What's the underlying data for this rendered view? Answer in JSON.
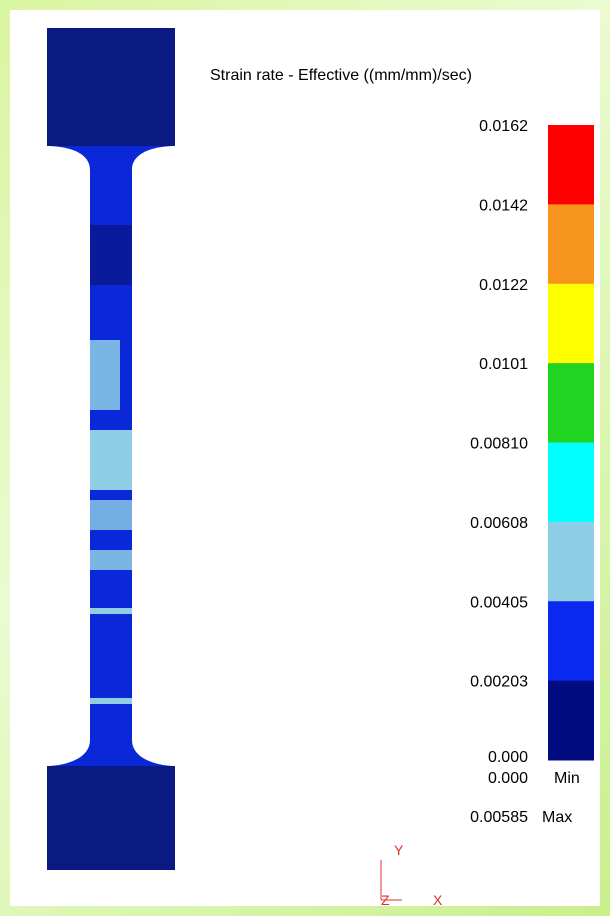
{
  "legend": {
    "title": "Strain rate - Effective ((mm/mm)/sec)",
    "labels": [
      "0.0162",
      "0.0142",
      "0.0122",
      "0.0101",
      "0.00810",
      "0.00608",
      "0.00405",
      "0.00203",
      "0.000"
    ],
    "colors": [
      "#ff0000",
      "#f7941e",
      "#ffff00",
      "#22d422",
      "#00ffff",
      "#8ecfe6",
      "#0a28f0",
      "#000c80"
    ]
  },
  "summary": [
    {
      "value": "0.000",
      "label": "Min"
    },
    {
      "value": "0.00585",
      "label": "Max"
    }
  ],
  "triad": {
    "y": "Y",
    "z": "Z",
    "x": "X"
  }
}
